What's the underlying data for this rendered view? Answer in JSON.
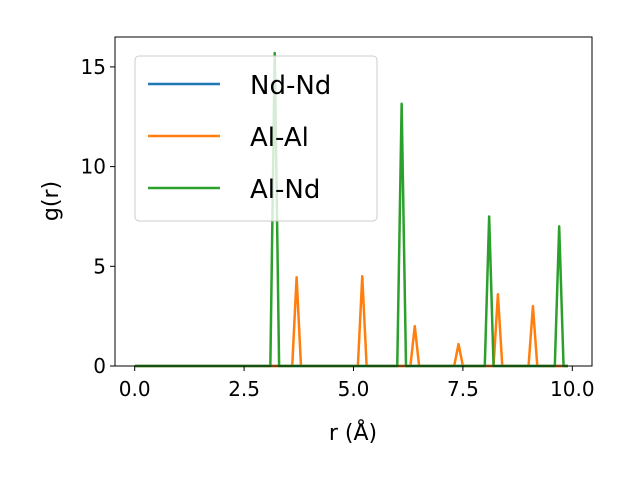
{
  "chart_data": {
    "type": "line",
    "xlabel": "r (Å)",
    "ylabel": "g(r)",
    "xlim": [
      -0.45,
      10.45
    ],
    "ylim": [
      0,
      16.5
    ],
    "xticks": [
      "0.0",
      "2.5",
      "5.0",
      "7.5",
      "10.0"
    ],
    "xtick_values": [
      0,
      2.5,
      5,
      7.5,
      10
    ],
    "yticks": [
      "0",
      "5",
      "10",
      "15"
    ],
    "ytick_values": [
      0,
      5,
      10,
      15
    ],
    "grid": false,
    "legend_position": "top-left",
    "series": [
      {
        "name": "Nd-Nd",
        "color": "#1f77b4",
        "x": [
          0,
          9.9
        ],
        "y": [
          0,
          0
        ]
      },
      {
        "name": "Al-Al",
        "color": "#ff7f0e",
        "x": [
          0,
          3.6,
          3.7,
          3.8,
          5.1,
          5.2,
          5.3,
          6.3,
          6.4,
          6.5,
          7.3,
          7.4,
          7.5,
          8.2,
          8.3,
          8.4,
          9.0,
          9.1,
          9.2,
          9.9
        ],
        "y": [
          0,
          0,
          4.45,
          0,
          0,
          4.5,
          0,
          0,
          2.0,
          0,
          0,
          1.1,
          0,
          0,
          3.6,
          0,
          0,
          3.0,
          0,
          0
        ]
      },
      {
        "name": "Al-Nd",
        "color": "#2ca02c",
        "x": [
          0,
          3.1,
          3.2,
          3.3,
          6.0,
          6.1,
          6.2,
          8.0,
          8.1,
          8.2,
          9.6,
          9.7,
          9.8,
          9.9
        ],
        "y": [
          0,
          0,
          15.7,
          0,
          0,
          13.15,
          0,
          0,
          7.5,
          0,
          0,
          7.0,
          0,
          0
        ]
      }
    ]
  }
}
